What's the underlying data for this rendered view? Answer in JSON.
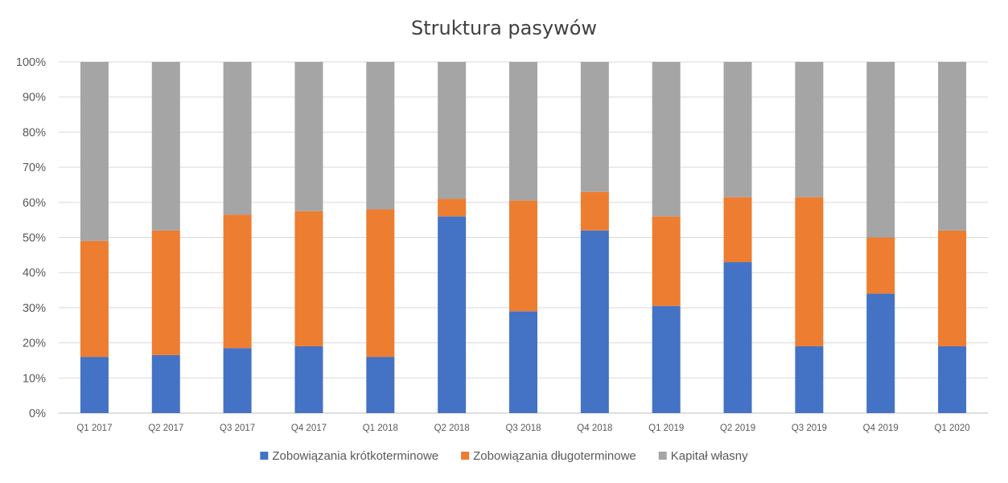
{
  "chart_data": {
    "type": "bar",
    "stacked": true,
    "percent": true,
    "title": "Struktura pasywów",
    "categories": [
      "Q1 2017",
      "Q2 2017",
      "Q3 2017",
      "Q4 2017",
      "Q1 2018",
      "Q2 2018",
      "Q3 2018",
      "Q4 2018",
      "Q1 2019",
      "Q2 2019",
      "Q3 2019",
      "Q4 2019",
      "Q1 2020"
    ],
    "series": [
      {
        "name": "Zobowiązania krótkoterminowe",
        "color": "#4472c4",
        "values": [
          16,
          16.5,
          18.5,
          19,
          16,
          56,
          29,
          52,
          30.5,
          43,
          19,
          34,
          19
        ]
      },
      {
        "name": "Zobowiązania długoterminowe",
        "color": "#ed7d31",
        "values": [
          33,
          35.5,
          38,
          38.5,
          42,
          5,
          31.5,
          11,
          25.5,
          18.5,
          42.5,
          16,
          33
        ]
      },
      {
        "name": "Kapitał własny",
        "color": "#a5a5a5",
        "values": [
          51,
          48,
          43.5,
          42.5,
          42,
          39,
          39.5,
          37,
          44,
          38.5,
          38.5,
          50,
          48
        ]
      }
    ],
    "y_ticks": [
      "0%",
      "10%",
      "20%",
      "30%",
      "40%",
      "50%",
      "60%",
      "70%",
      "80%",
      "90%",
      "100%"
    ],
    "ylim": [
      0,
      100
    ],
    "grid": true,
    "legend": "bottom"
  }
}
